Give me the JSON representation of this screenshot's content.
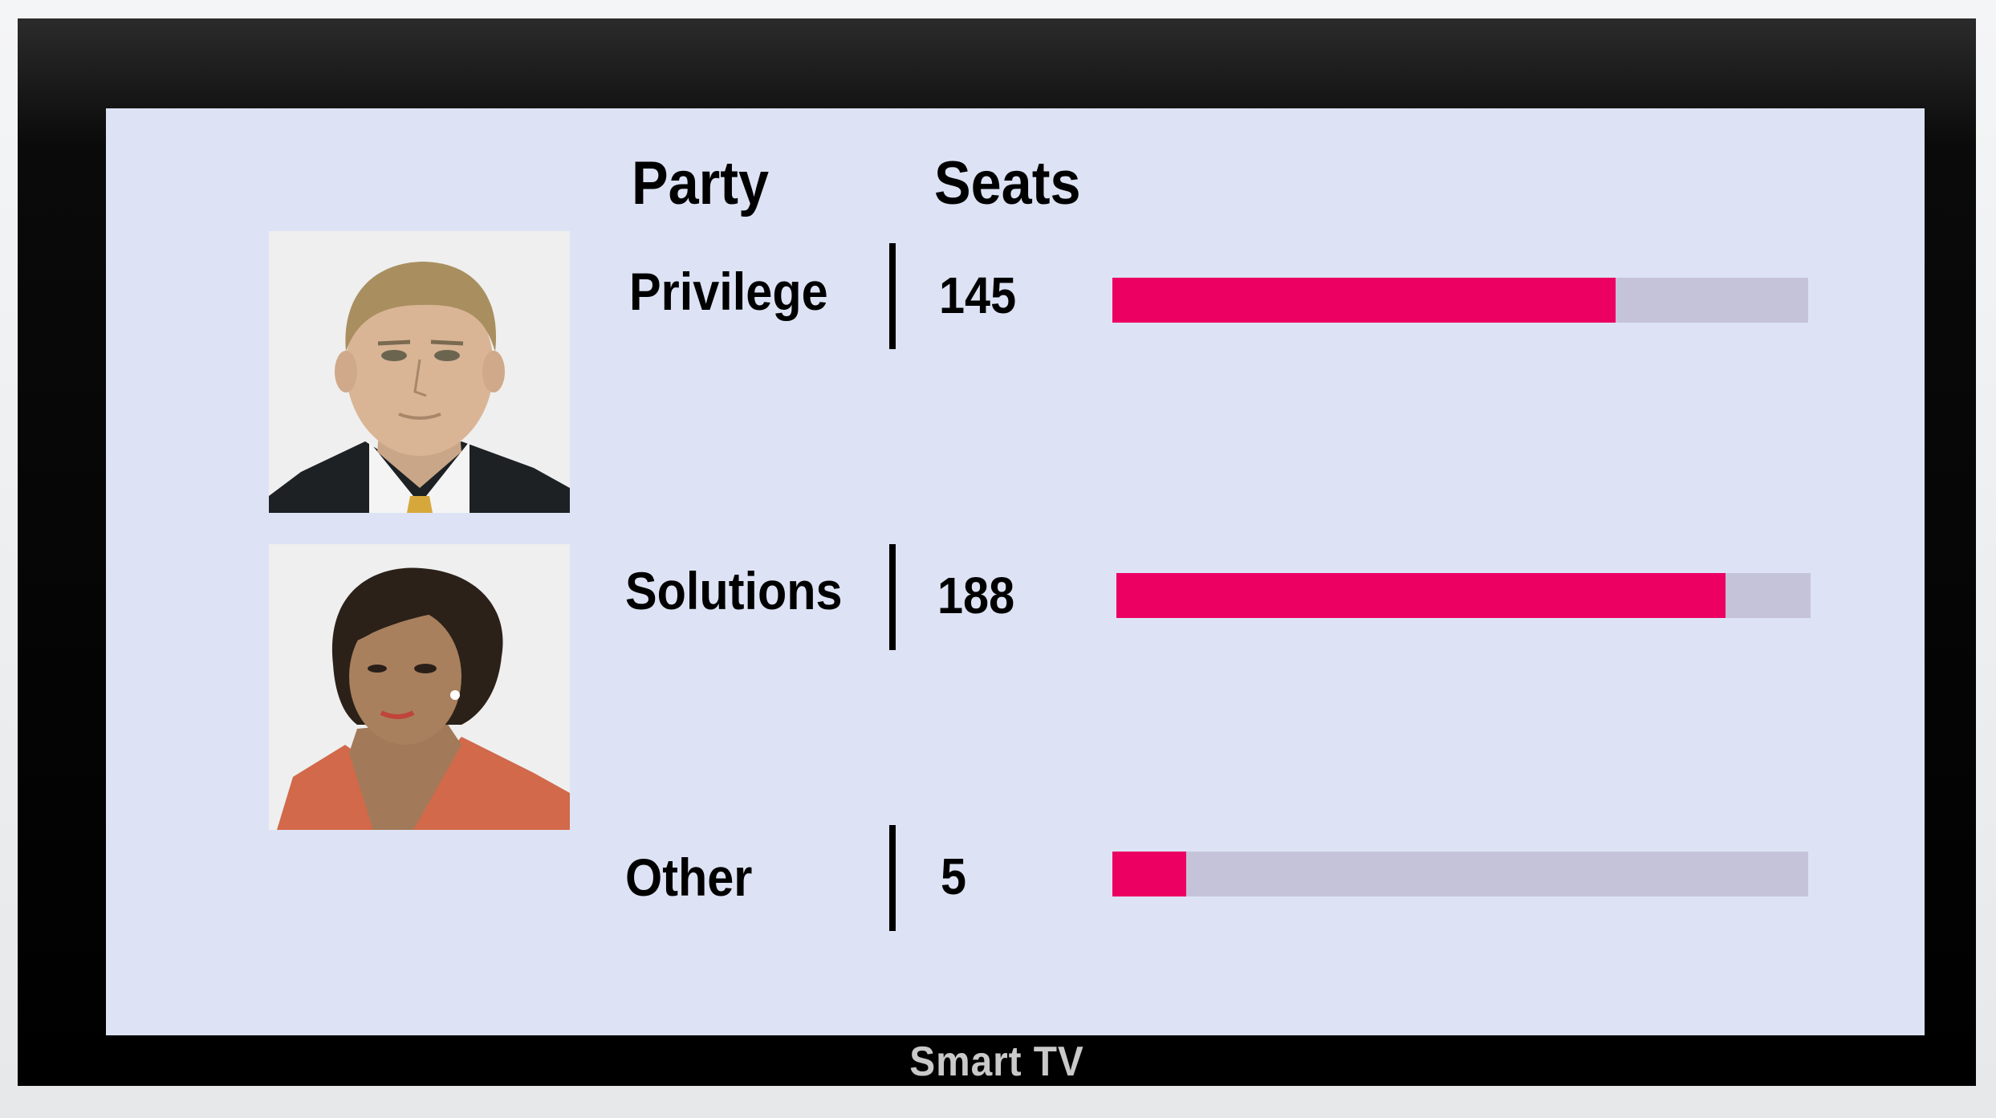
{
  "headers": {
    "party": "Party",
    "seats": "Seats"
  },
  "parties": [
    {
      "name": "Privilege",
      "seats": "145",
      "fill_fraction": 0.723
    },
    {
      "name": "Solutions",
      "seats": "188",
      "fill_fraction": 0.878
    },
    {
      "name": "Other",
      "seats": "5",
      "fill_fraction": 0.106
    }
  ],
  "device_label": "Smart TV",
  "colors": {
    "bar_fill": "#ec0062",
    "bar_track": "#c5c3da",
    "screen_bg": "#dde3f4"
  },
  "icons": {
    "portrait_1": "man-in-suit-avatar",
    "portrait_2": "woman-in-orange-blazer-avatar"
  }
}
